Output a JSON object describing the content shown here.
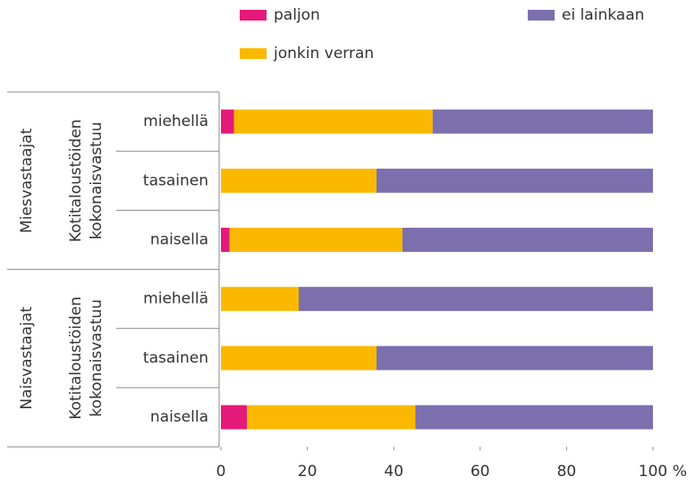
{
  "chart_data": {
    "type": "stacked-barh",
    "categories": [
      "miehellä",
      "tasainen",
      "naisella",
      "miehellä",
      "tasainen",
      "naisella"
    ],
    "groups": [
      {
        "label": "Miesvastaajat",
        "sublabel": [
          "Kotitaloustöiden",
          "kokonaisvastuu"
        ]
      },
      {
        "label": "Naisvastaajat",
        "sublabel": [
          "Kotitaloustöiden",
          "kokonaisvastuu"
        ]
      }
    ],
    "series": [
      {
        "name": "paljon",
        "color": "#e5197a",
        "values": [
          3,
          0,
          2,
          0,
          0,
          6
        ]
      },
      {
        "name": "jonkin verran",
        "color": "#fbb800",
        "values": [
          46,
          36,
          40,
          18,
          36,
          39
        ]
      },
      {
        "name": "ei lainkaan",
        "color": "#7b6fae",
        "values": [
          51,
          64,
          58,
          82,
          64,
          55
        ]
      }
    ],
    "xlim": [
      0,
      100
    ],
    "xticks": [
      0,
      20,
      40,
      60,
      80,
      100
    ],
    "x_unit": "%"
  }
}
